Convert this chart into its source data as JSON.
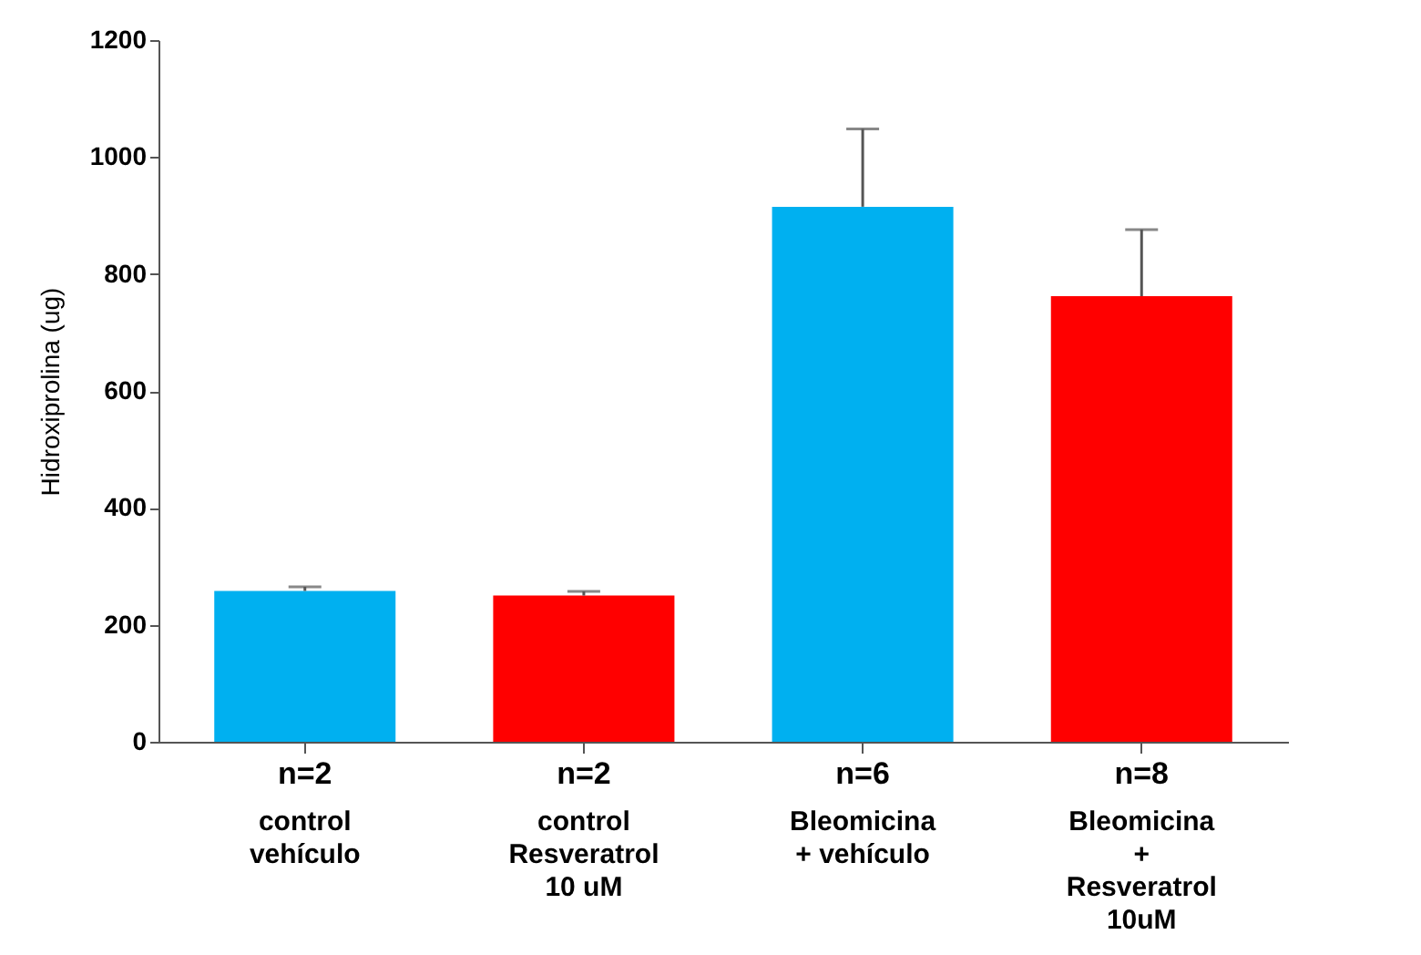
{
  "chart_data": {
    "type": "bar",
    "ylabel": "Hidroxiprolina (ug)",
    "categories": [
      "control\nvehículo",
      "control\nResveratrol\n10 uM",
      "Bleomicina\n+ vehículo",
      "Bleomicina\n+\nResveratrol\n10uM"
    ],
    "values": [
      258,
      250,
      915,
      762
    ],
    "colors": [
      "#00b0f0",
      "#ff0000",
      "#00b0f0",
      "#ff0000"
    ],
    "errors": [
      [
        258,
        265
      ],
      [
        250,
        257
      ],
      [
        915,
        1048
      ],
      [
        762,
        876
      ]
    ],
    "ylim": [
      0,
      1200
    ],
    "yticks": [
      0,
      200,
      400,
      600,
      800,
      1000,
      1200
    ],
    "grid": false,
    "annotations": [
      "n=2",
      "n=2",
      "n=6",
      "n=8"
    ]
  }
}
